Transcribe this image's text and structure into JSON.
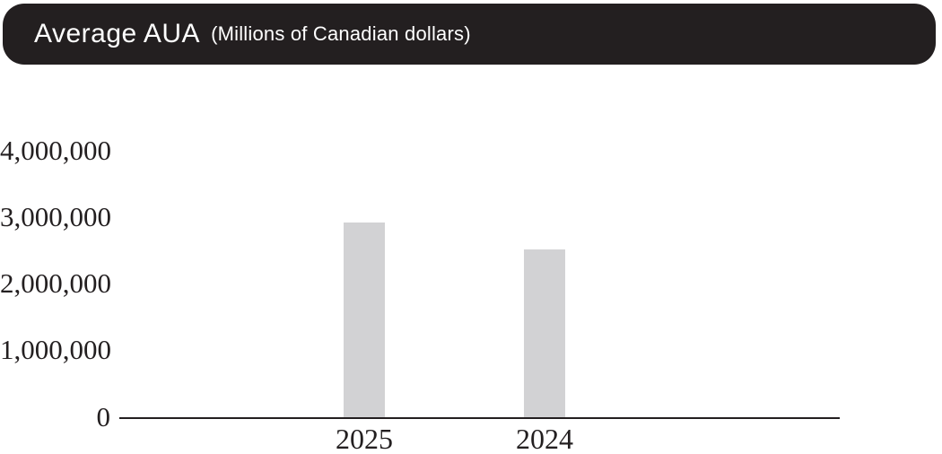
{
  "header": {
    "title": "Average AUA",
    "subtitle": "(Millions of Canadian dollars)"
  },
  "colors": {
    "header_bg": "#231f20",
    "title_text": "#ffffff",
    "text": "#231f20",
    "axis_line": "#231f20",
    "bar": "#d2d2d4"
  },
  "chart_data": {
    "type": "bar",
    "title": "Average AUA",
    "subtitle": "(Millions of Canadian dollars)",
    "categories": [
      "2025",
      "2024"
    ],
    "values": [
      2930000,
      2520000
    ],
    "xlabel": "",
    "ylabel": "",
    "ylim": [
      0,
      4000000
    ],
    "yticks": [
      "4,000,000",
      "3,000,000",
      "2,000,000",
      "1,000,000",
      "0"
    ],
    "ytick_values": [
      4000000,
      3000000,
      2000000,
      1000000,
      0
    ],
    "grid": false,
    "legend": false,
    "bar_color": "#d2d2d4",
    "background": "#ffffff"
  }
}
